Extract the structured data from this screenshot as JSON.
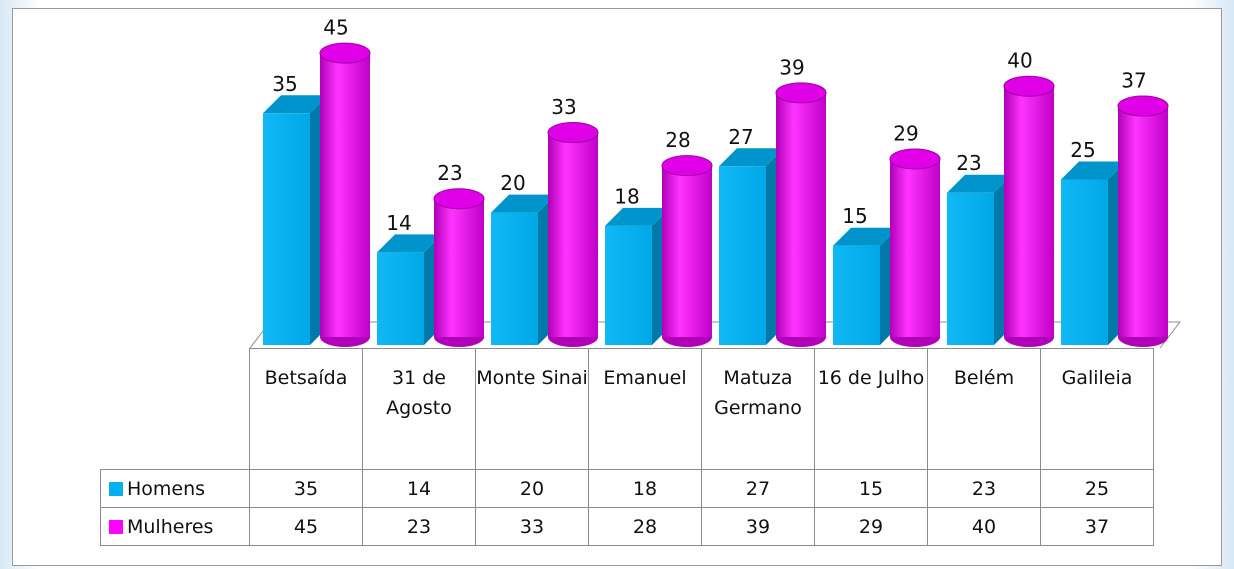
{
  "chart_data": {
    "type": "bar3d",
    "categories": [
      "Betsaída",
      "31 de Agosto",
      "Monte Sinai",
      "Emanuel",
      "Matuza Germano",
      "16 de Julho",
      "Belém",
      "Galileia"
    ],
    "series": [
      {
        "name": "Homens",
        "color": "#00b0f0",
        "shape": "box",
        "values": [
          35,
          14,
          20,
          18,
          27,
          15,
          23,
          25
        ]
      },
      {
        "name": "Mulheres",
        "color": "#ff00ff",
        "shape": "cylinder",
        "values": [
          45,
          23,
          33,
          28,
          39,
          29,
          40,
          37
        ]
      }
    ],
    "data_labels": true,
    "data_table": true
  }
}
